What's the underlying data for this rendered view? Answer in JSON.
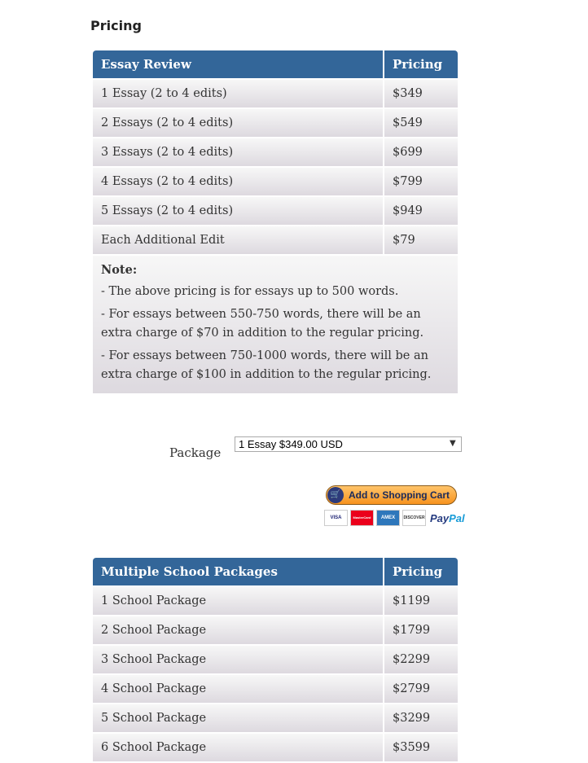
{
  "title": "Pricing",
  "essay_table": {
    "headers": [
      "Essay Review",
      "Pricing"
    ],
    "rows": [
      [
        "1 Essay (2 to 4 edits)",
        "$349"
      ],
      [
        "2 Essays (2 to 4 edits)",
        "$549"
      ],
      [
        "3 Essays (2 to 4 edits)",
        "$699"
      ],
      [
        "4 Essays (2 to 4 edits)",
        "$799"
      ],
      [
        "5 Essays (2 to 4 edits)",
        "$949"
      ],
      [
        "Each Additional Edit",
        "$79"
      ]
    ],
    "note": {
      "heading": "Note:",
      "lines": [
        "- The above pricing is for essays up to 500 words.",
        "- For essays between 550-750 words, there will be an extra charge of $70 in addition to the regular pricing.",
        "- For essays between 750-1000 words, there will be an extra charge of $100 in addition to the regular pricing."
      ]
    }
  },
  "package": {
    "label": "Package",
    "selected": "1 Essay $349.00 USD",
    "cart_button": "Add to Shopping Cart",
    "cards": [
      "VISA",
      "MasterCard",
      "AMEX",
      "DISCOVER"
    ],
    "paypal_a": "Pay",
    "paypal_b": "Pal"
  },
  "school_table": {
    "headers": [
      "Multiple School Packages",
      "Pricing"
    ],
    "rows": [
      [
        "1 School Package",
        "$1199"
      ],
      [
        "2 School Package",
        "$1799"
      ],
      [
        "3 School Package",
        "$2299"
      ],
      [
        "4 School Package",
        "$2799"
      ],
      [
        "5 School Package",
        "$3299"
      ],
      [
        "6 School Package",
        "$3599"
      ]
    ]
  }
}
